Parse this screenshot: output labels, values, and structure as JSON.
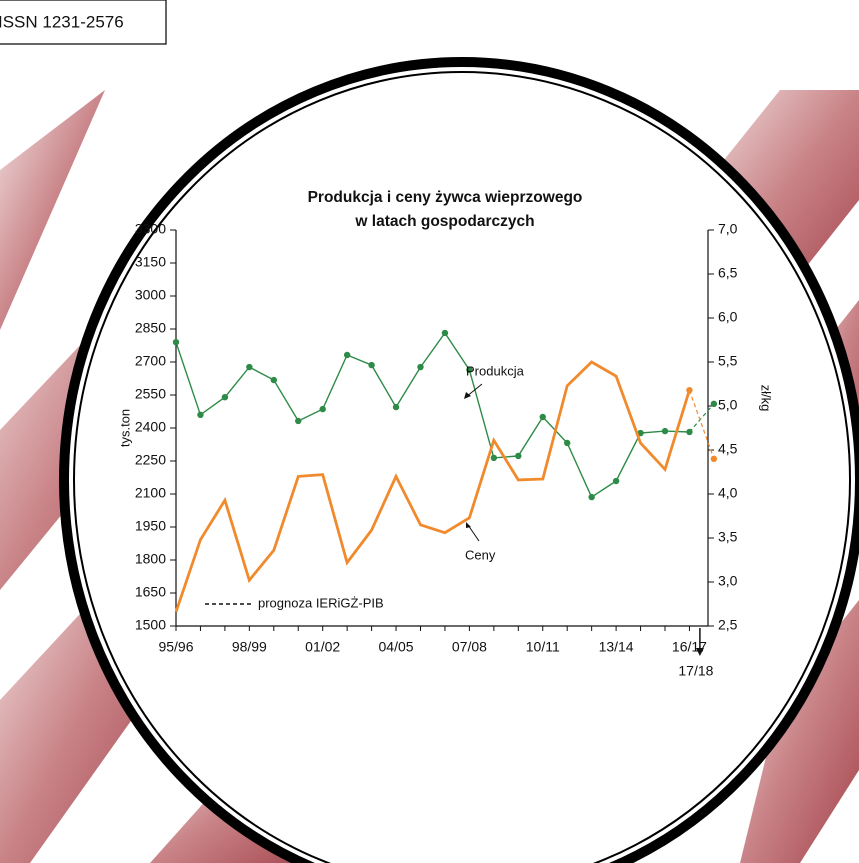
{
  "header": {
    "issn": "ISSN 1231-2576"
  },
  "chart_data": {
    "type": "line",
    "title": [
      "Produkcja i ceny żywca wieprzowego",
      "w latach gospodarczych"
    ],
    "categories": [
      "95/96",
      null,
      null,
      "98/99",
      null,
      null,
      "01/02",
      null,
      null,
      "04/05",
      null,
      null,
      "07/08",
      null,
      null,
      "10/11",
      null,
      null,
      "13/14",
      null,
      null,
      "16/17",
      "17/18"
    ],
    "ylabel": "tys.ton",
    "y2label": "zł/kg",
    "ylim": [
      1500,
      3300
    ],
    "yticks": [
      1500,
      1650,
      1800,
      1950,
      2100,
      2250,
      2400,
      2550,
      2700,
      2850,
      3000,
      3150,
      3300
    ],
    "y2lim": [
      2.5,
      7.0
    ],
    "y2ticks": [
      {
        "value": 2.5,
        "label": "2,5"
      },
      {
        "value": 3.0,
        "label": "3,0"
      },
      {
        "value": 3.5,
        "label": "3,5"
      },
      {
        "value": 4.0,
        "label": "4,0"
      },
      {
        "value": 4.5,
        "label": "4,5"
      },
      {
        "value": 5.0,
        "label": "5,0"
      },
      {
        "value": 5.5,
        "label": "5,5"
      },
      {
        "value": 6.0,
        "label": "6,0"
      },
      {
        "value": 6.5,
        "label": "6,5"
      },
      {
        "value": 7.0,
        "label": "7,0"
      }
    ],
    "forecast_from": 21,
    "legend_label": "prognoza IERiGŻ-PIB",
    "series": [
      {
        "name": "Produkcja",
        "color": "#2e8b47",
        "markers": true,
        "values": [
          2790,
          2460,
          2540,
          2677,
          2618,
          2432,
          2486,
          2732,
          2686,
          2495,
          2677,
          2832,
          2664,
          2264,
          2273,
          2450,
          2332,
          2086,
          2159,
          2377,
          2386,
          2382,
          2510
        ]
      },
      {
        "name": "Ceny",
        "color": "#f08a2c",
        "markers": false,
        "axis": "y2",
        "values": [
          2.66,
          3.48,
          3.93,
          3.02,
          3.36,
          4.2,
          4.22,
          3.22,
          3.59,
          4.2,
          3.65,
          3.56,
          3.73,
          4.61,
          4.16,
          4.17,
          5.23,
          5.5,
          5.34,
          4.58,
          4.28,
          5.18,
          4.4
        ]
      }
    ]
  }
}
